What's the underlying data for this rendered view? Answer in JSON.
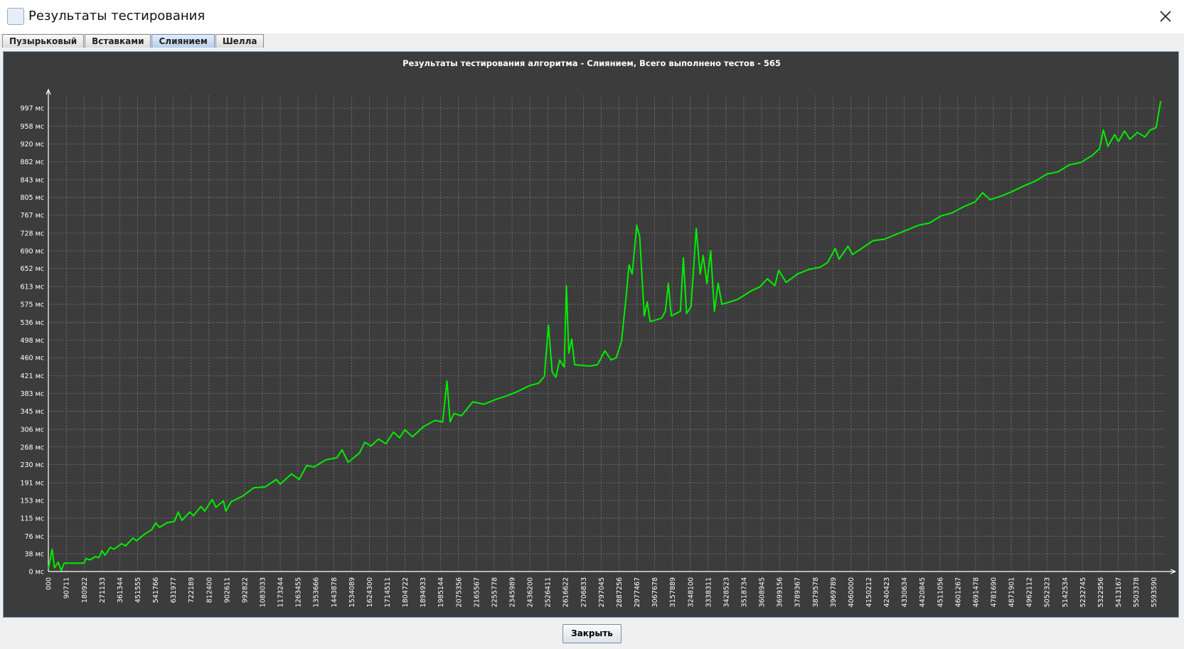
{
  "window": {
    "title": "Результаты тестирования",
    "tabs": [
      "Пузырьковый",
      "Вставками",
      "Слиянием",
      "Шелла"
    ],
    "button": "Закрыть"
  },
  "chart_data": {
    "type": "line",
    "title": "Результаты тестирования алгоритма - Слиянием, Всего выполнено тестов - 565",
    "color": "#00ee00",
    "grid": true,
    "xlim": [
      0,
      5674000
    ],
    "ylim": [
      0,
      1037
    ],
    "yticks": [
      {
        "value": 0,
        "label": "0 мс"
      },
      {
        "value": 38,
        "label": "38 мс"
      },
      {
        "value": 76,
        "label": "76 мс"
      },
      {
        "value": 115,
        "label": "115 мс"
      },
      {
        "value": 153,
        "label": "153 мс"
      },
      {
        "value": 191,
        "label": "191 мс"
      },
      {
        "value": 230,
        "label": "230 мс"
      },
      {
        "value": 268,
        "label": "268 мс"
      },
      {
        "value": 306,
        "label": "306 мс"
      },
      {
        "value": 345,
        "label": "345 мс"
      },
      {
        "value": 383,
        "label": "383 мс"
      },
      {
        "value": 421,
        "label": "421 мс"
      },
      {
        "value": 460,
        "label": "460 мс"
      },
      {
        "value": 498,
        "label": "498 мс"
      },
      {
        "value": 536,
        "label": "536 мс"
      },
      {
        "value": 575,
        "label": "575 мс"
      },
      {
        "value": 613,
        "label": "613 мс"
      },
      {
        "value": 652,
        "label": "652 мс"
      },
      {
        "value": 690,
        "label": "690 мс"
      },
      {
        "value": 728,
        "label": "728 мс"
      },
      {
        "value": 767,
        "label": "767 мс"
      },
      {
        "value": 805,
        "label": "805 мс"
      },
      {
        "value": 843,
        "label": "843 мс"
      },
      {
        "value": 882,
        "label": "882 мс"
      },
      {
        "value": 920,
        "label": "920 мс"
      },
      {
        "value": 958,
        "label": "958 мс"
      },
      {
        "value": 997,
        "label": "997 мс"
      }
    ],
    "xticks": [
      {
        "value": 0,
        "label": "000"
      },
      90711,
      180922,
      271133,
      361344,
      451555,
      541766,
      631977,
      722189,
      812400,
      902611,
      992822,
      1083033,
      1173244,
      1263455,
      1353666,
      1443878,
      1534089,
      1624300,
      1714511,
      1804722,
      1894933,
      1985144,
      2075356,
      2165567,
      2255778,
      2345989,
      2436200,
      2526411,
      2616622,
      2706833,
      2797045,
      2887256,
      2977467,
      3067678,
      3157889,
      3248100,
      3338311,
      3428523,
      3518734,
      3608945,
      3699156,
      3789367,
      3879578,
      3969789,
      4060000,
      4150212,
      4240423,
      4330634,
      4420845,
      4511056,
      4601267,
      4691478,
      4781690,
      4871901,
      4962112,
      5052323,
      5142534,
      5232745,
      5322956,
      5413167,
      5503378,
      5593590
    ],
    "x": [
      0,
      19000,
      31000,
      50000,
      65000,
      80000,
      180000,
      191000,
      210000,
      237000,
      256000,
      271000,
      287000,
      313000,
      332000,
      371000,
      390000,
      428000,
      447000,
      485000,
      523000,
      543000,
      562000,
      600000,
      638000,
      657000,
      676000,
      715000,
      734000,
      772000,
      791000,
      829000,
      848000,
      886000,
      898000,
      925000,
      982000,
      1039000,
      1097000,
      1154000,
      1173000,
      1230000,
      1269000,
      1307000,
      1345000,
      1402000,
      1460000,
      1486000,
      1517000,
      1574000,
      1601000,
      1632000,
      1670000,
      1708000,
      1746000,
      1777000,
      1804000,
      1842000,
      1899000,
      1956000,
      1995000,
      2017000,
      2033000,
      2052000,
      2090000,
      2147000,
      2205000,
      2262000,
      2319000,
      2377000,
      2434000,
      2480000,
      2510000,
      2530000,
      2549000,
      2568000,
      2587000,
      2610000,
      2621000,
      2633000,
      2648000,
      2663000,
      2740000,
      2778000,
      2816000,
      2847000,
      2873000,
      2900000,
      2923000,
      2938000,
      2954000,
      2977000,
      2992000,
      3015000,
      3030000,
      3045000,
      3103000,
      3122000,
      3137000,
      3152000,
      3198000,
      3213000,
      3229000,
      3252000,
      3278000,
      3298000,
      3313000,
      3332000,
      3351000,
      3370000,
      3389000,
      3408000,
      3447000,
      3485000,
      3523000,
      3561000,
      3599000,
      3638000,
      3676000,
      3695000,
      3733000,
      3790000,
      3848000,
      3905000,
      3943000,
      3981000,
      4001000,
      4046000,
      4069000,
      4115000,
      4173000,
      4230000,
      4287000,
      4345000,
      4402000,
      4459000,
      4516000,
      4574000,
      4631000,
      4688000,
      4727000,
      4765000,
      4822000,
      4879000,
      4937000,
      4994000,
      5051000,
      5109000,
      5166000,
      5223000,
      5281000,
      5319000,
      5338000,
      5361000,
      5395000,
      5414000,
      5445000,
      5472000,
      5510000,
      5548000,
      5575000,
      5605000,
      5628000
    ],
    "values": [
      5,
      48,
      8,
      20,
      2,
      18,
      18,
      28,
      25,
      32,
      30,
      45,
      35,
      52,
      48,
      60,
      55,
      72,
      66,
      80,
      90,
      105,
      95,
      105,
      108,
      128,
      110,
      128,
      120,
      140,
      130,
      155,
      138,
      152,
      130,
      150,
      162,
      180,
      182,
      198,
      188,
      210,
      198,
      228,
      225,
      240,
      245,
      262,
      235,
      255,
      278,
      270,
      285,
      275,
      300,
      288,
      305,
      290,
      312,
      325,
      322,
      410,
      322,
      340,
      335,
      365,
      360,
      370,
      378,
      388,
      400,
      405,
      420,
      530,
      430,
      418,
      455,
      440,
      615,
      470,
      500,
      445,
      442,
      445,
      475,
      455,
      460,
      495,
      590,
      660,
      640,
      745,
      720,
      550,
      580,
      538,
      545,
      560,
      620,
      550,
      560,
      675,
      555,
      570,
      738,
      640,
      680,
      620,
      690,
      560,
      620,
      575,
      580,
      585,
      595,
      605,
      612,
      630,
      615,
      648,
      622,
      640,
      650,
      655,
      665,
      695,
      672,
      700,
      682,
      695,
      712,
      715,
      725,
      735,
      745,
      750,
      765,
      772,
      785,
      795,
      815,
      800,
      808,
      818,
      830,
      840,
      855,
      860,
      875,
      880,
      895,
      910,
      950,
      915,
      940,
      925,
      948,
      930,
      945,
      935,
      950,
      955,
      1012
    ]
  }
}
